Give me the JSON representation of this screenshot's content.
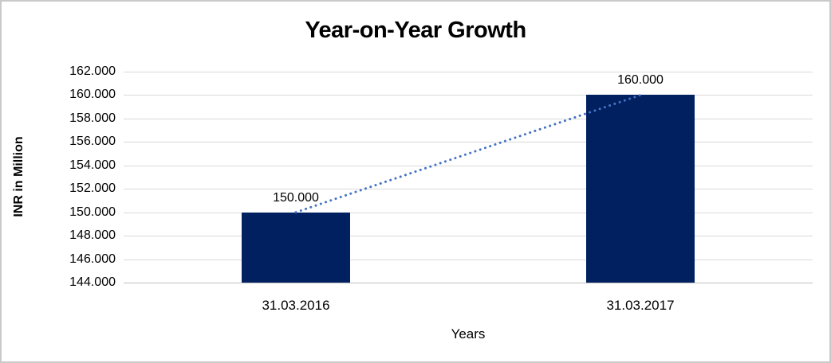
{
  "chart_data": {
    "type": "bar",
    "title": "Year-on-Year Growth",
    "xlabel": "Years",
    "ylabel": "INR in Million",
    "categories": [
      "31.03.2016",
      "31.03.2017"
    ],
    "values": [
      150000,
      160000
    ],
    "value_labels": [
      "150.000",
      "160.000"
    ],
    "ylim": [
      144000,
      162000
    ],
    "y_ticks": [
      {
        "value": 144000,
        "label": "144.000"
      },
      {
        "value": 146000,
        "label": "146.000"
      },
      {
        "value": 148000,
        "label": "148.000"
      },
      {
        "value": 150000,
        "label": "150.000"
      },
      {
        "value": 152000,
        "label": "152.000"
      },
      {
        "value": 154000,
        "label": "154.000"
      },
      {
        "value": 156000,
        "label": "156.000"
      },
      {
        "value": 158000,
        "label": "158.000"
      },
      {
        "value": 160000,
        "label": "160.000"
      },
      {
        "value": 162000,
        "label": "162.000"
      }
    ],
    "grid": true,
    "legend": "none",
    "colors": {
      "bar_fill": "#002060",
      "trendline": "#4472c4",
      "gridline": "#d9d9d9",
      "axis_line": "#bfbfbf",
      "text": "#000000",
      "frame_border": "#c9c9c9"
    },
    "trendline": {
      "style": "dotted",
      "color": "#4472c4",
      "connects": "bar tops"
    }
  }
}
